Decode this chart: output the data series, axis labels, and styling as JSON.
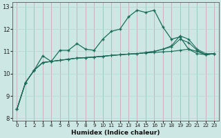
{
  "x": [
    0,
    1,
    2,
    3,
    4,
    5,
    6,
    7,
    8,
    9,
    10,
    11,
    12,
    13,
    14,
    15,
    16,
    17,
    18,
    19,
    20,
    21,
    22,
    23
  ],
  "line1": [
    8.4,
    9.6,
    10.15,
    10.8,
    10.55,
    11.05,
    11.05,
    11.35,
    11.1,
    11.05,
    11.55,
    11.9,
    12.0,
    12.55,
    12.85,
    12.75,
    12.85,
    12.1,
    11.55,
    11.65,
    11.1,
    11.0,
    10.85,
    10.9
  ],
  "line2": [
    8.4,
    9.6,
    10.15,
    10.5,
    10.55,
    10.6,
    10.65,
    10.7,
    10.72,
    10.75,
    10.78,
    10.82,
    10.85,
    10.88,
    10.9,
    10.93,
    10.95,
    10.98,
    11.0,
    11.05,
    11.1,
    10.9,
    10.85,
    10.9
  ],
  "line3": [
    8.4,
    9.6,
    10.15,
    10.5,
    10.55,
    10.6,
    10.65,
    10.7,
    10.72,
    10.75,
    10.78,
    10.82,
    10.85,
    10.88,
    10.9,
    10.95,
    11.0,
    11.1,
    11.2,
    11.55,
    11.4,
    11.05,
    10.85,
    10.9
  ],
  "line4": [
    8.4,
    9.6,
    10.15,
    10.5,
    10.55,
    10.6,
    10.65,
    10.7,
    10.72,
    10.75,
    10.78,
    10.82,
    10.85,
    10.88,
    10.9,
    10.95,
    11.0,
    11.1,
    11.25,
    11.7,
    11.55,
    11.1,
    10.9,
    10.9
  ],
  "bg_color": "#cde8e4",
  "grid_color_v": "#b8d8d4",
  "grid_color_h": "#c8b8c8",
  "line_color": "#1a6b5a",
  "xlabel": "Humidex (Indice chaleur)",
  "xlim": [
    -0.5,
    23.5
  ],
  "ylim": [
    7.9,
    13.2
  ],
  "yticks": [
    8,
    9,
    10,
    11,
    12,
    13
  ],
  "xticks": [
    0,
    1,
    2,
    3,
    4,
    5,
    6,
    7,
    8,
    9,
    10,
    11,
    12,
    13,
    14,
    15,
    16,
    17,
    18,
    19,
    20,
    21,
    22,
    23
  ]
}
